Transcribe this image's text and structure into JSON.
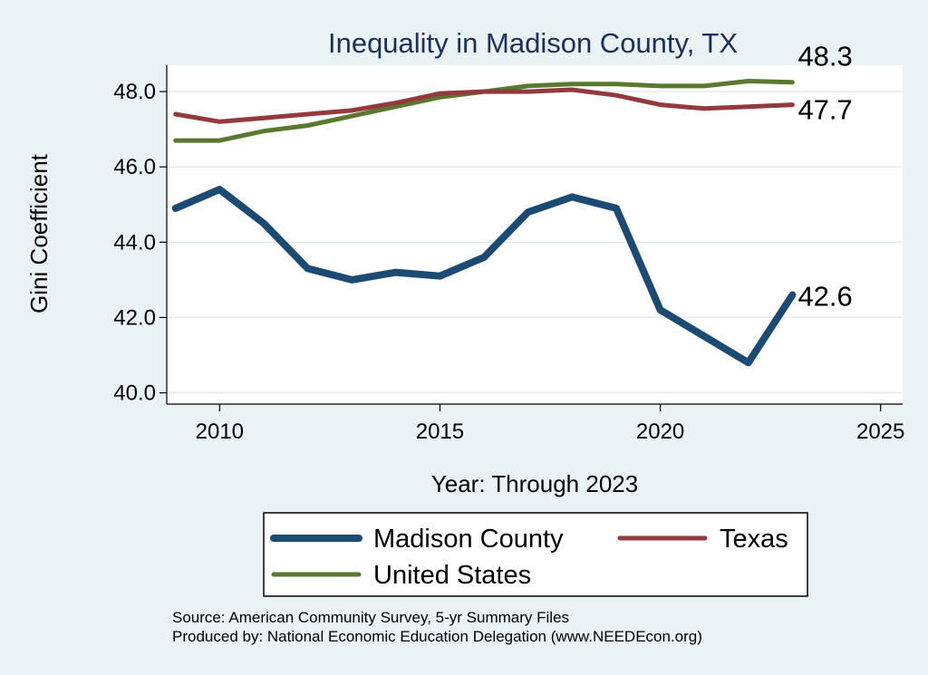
{
  "chart_data": {
    "type": "line",
    "title": "Inequality in Madison County, TX",
    "xlabel": "Year: Through 2023",
    "ylabel": "Gini Coefficient",
    "xlim": [
      2008.8,
      2025.5
    ],
    "ylim": [
      39.7,
      48.7
    ],
    "x_ticks": [
      2010,
      2015,
      2020,
      2025
    ],
    "x_tick_labels": [
      "2010",
      "2015",
      "2020",
      "2025"
    ],
    "y_ticks": [
      40,
      42,
      44,
      46,
      48
    ],
    "y_tick_labels": [
      "40.0",
      "42.0",
      "44.0",
      "46.0",
      "48.0"
    ],
    "grid": true,
    "legend_position": "bottom",
    "x": [
      2009,
      2010,
      2011,
      2012,
      2013,
      2014,
      2015,
      2016,
      2017,
      2018,
      2019,
      2020,
      2021,
      2022,
      2023
    ],
    "series": [
      {
        "name": "Madison County",
        "color": "#1b4a72",
        "values": [
          44.9,
          45.4,
          44.5,
          43.3,
          43.0,
          43.2,
          43.1,
          43.6,
          44.8,
          45.2,
          44.9,
          42.2,
          41.5,
          40.8,
          42.6
        ],
        "end_label": "42.6"
      },
      {
        "name": "Texas",
        "color": "#923a3d",
        "values": [
          47.4,
          47.2,
          47.3,
          47.4,
          47.5,
          47.7,
          47.95,
          48.0,
          48.0,
          48.05,
          47.9,
          47.65,
          47.55,
          47.6,
          47.65
        ],
        "end_label": "47.7"
      },
      {
        "name": "United States",
        "color": "#58792e",
        "values": [
          46.7,
          46.7,
          46.95,
          47.1,
          47.35,
          47.6,
          47.85,
          48.0,
          48.15,
          48.2,
          48.2,
          48.15,
          48.15,
          48.28,
          48.25
        ],
        "end_label": "48.3"
      }
    ],
    "notes": [
      "Source: American Community Survey, 5-yr Summary Files",
      "Produced by: National Economic Education Delegation (www.NEEDEcon.org)"
    ]
  }
}
